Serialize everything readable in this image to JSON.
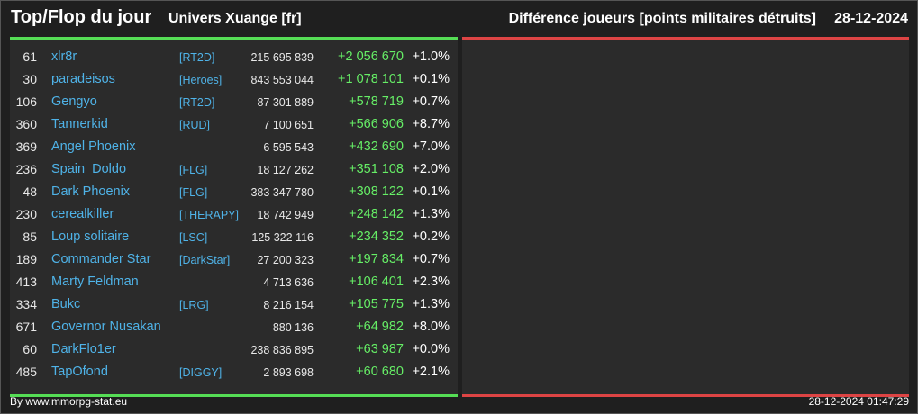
{
  "header": {
    "title": "Top/Flop du jour",
    "universe": "Univers Xuange [fr]",
    "metric": "Différence joueurs [points militaires détruits]",
    "date": "28-12-2024"
  },
  "colors": {
    "top_accent": "#55dd55",
    "flop_accent": "#dd4444",
    "name_link": "#4fb3e8",
    "positive_diff": "#66ee66"
  },
  "top": [
    {
      "rank": "61",
      "name": "xlr8r",
      "tag": "[RT2D]",
      "total": "215 695 839",
      "diff": "+2 056 670",
      "pct": "+1.0%"
    },
    {
      "rank": "30",
      "name": "paradeisos",
      "tag": "[Heroes]",
      "total": "843 553 044",
      "diff": "+1 078 101",
      "pct": "+0.1%"
    },
    {
      "rank": "106",
      "name": "Gengyo",
      "tag": "[RT2D]",
      "total": "87 301 889",
      "diff": "+578 719",
      "pct": "+0.7%"
    },
    {
      "rank": "360",
      "name": "Tannerkid",
      "tag": "[RUD]",
      "total": "7 100 651",
      "diff": "+566 906",
      "pct": "+8.7%"
    },
    {
      "rank": "369",
      "name": "Angel Phoenix",
      "tag": "",
      "total": "6 595 543",
      "diff": "+432 690",
      "pct": "+7.0%"
    },
    {
      "rank": "236",
      "name": "Spain_Doldo",
      "tag": "[FLG]",
      "total": "18 127 262",
      "diff": "+351 108",
      "pct": "+2.0%"
    },
    {
      "rank": "48",
      "name": "Dark Phoenix",
      "tag": "[FLG]",
      "total": "383 347 780",
      "diff": "+308 122",
      "pct": "+0.1%"
    },
    {
      "rank": "230",
      "name": "cerealkiller",
      "tag": "[THERAPY]",
      "total": "18 742 949",
      "diff": "+248 142",
      "pct": "+1.3%"
    },
    {
      "rank": "85",
      "name": "Loup solitaire",
      "tag": "[LSC]",
      "total": "125 322 116",
      "diff": "+234 352",
      "pct": "+0.2%"
    },
    {
      "rank": "189",
      "name": "Commander Star",
      "tag": "[DarkStar]",
      "total": "27 200 323",
      "diff": "+197 834",
      "pct": "+0.7%"
    },
    {
      "rank": "413",
      "name": "Marty Feldman",
      "tag": "",
      "total": "4 713 636",
      "diff": "+106 401",
      "pct": "+2.3%"
    },
    {
      "rank": "334",
      "name": "Bukc",
      "tag": "[LRG]",
      "total": "8 216 154",
      "diff": "+105 775",
      "pct": "+1.3%"
    },
    {
      "rank": "671",
      "name": "Governor Nusakan",
      "tag": "",
      "total": "880 136",
      "diff": "+64 982",
      "pct": "+8.0%"
    },
    {
      "rank": "60",
      "name": "DarkFlo1er",
      "tag": "",
      "total": "238 836 895",
      "diff": "+63 987",
      "pct": "+0.0%"
    },
    {
      "rank": "485",
      "name": "TapOfond",
      "tag": "[DIGGY]",
      "total": "2 893 698",
      "diff": "+60 680",
      "pct": "+2.1%"
    }
  ],
  "flop": [],
  "footer": {
    "credit": "By www.mmorpg-stat.eu",
    "timestamp": "28-12-2024 01:47:29"
  }
}
